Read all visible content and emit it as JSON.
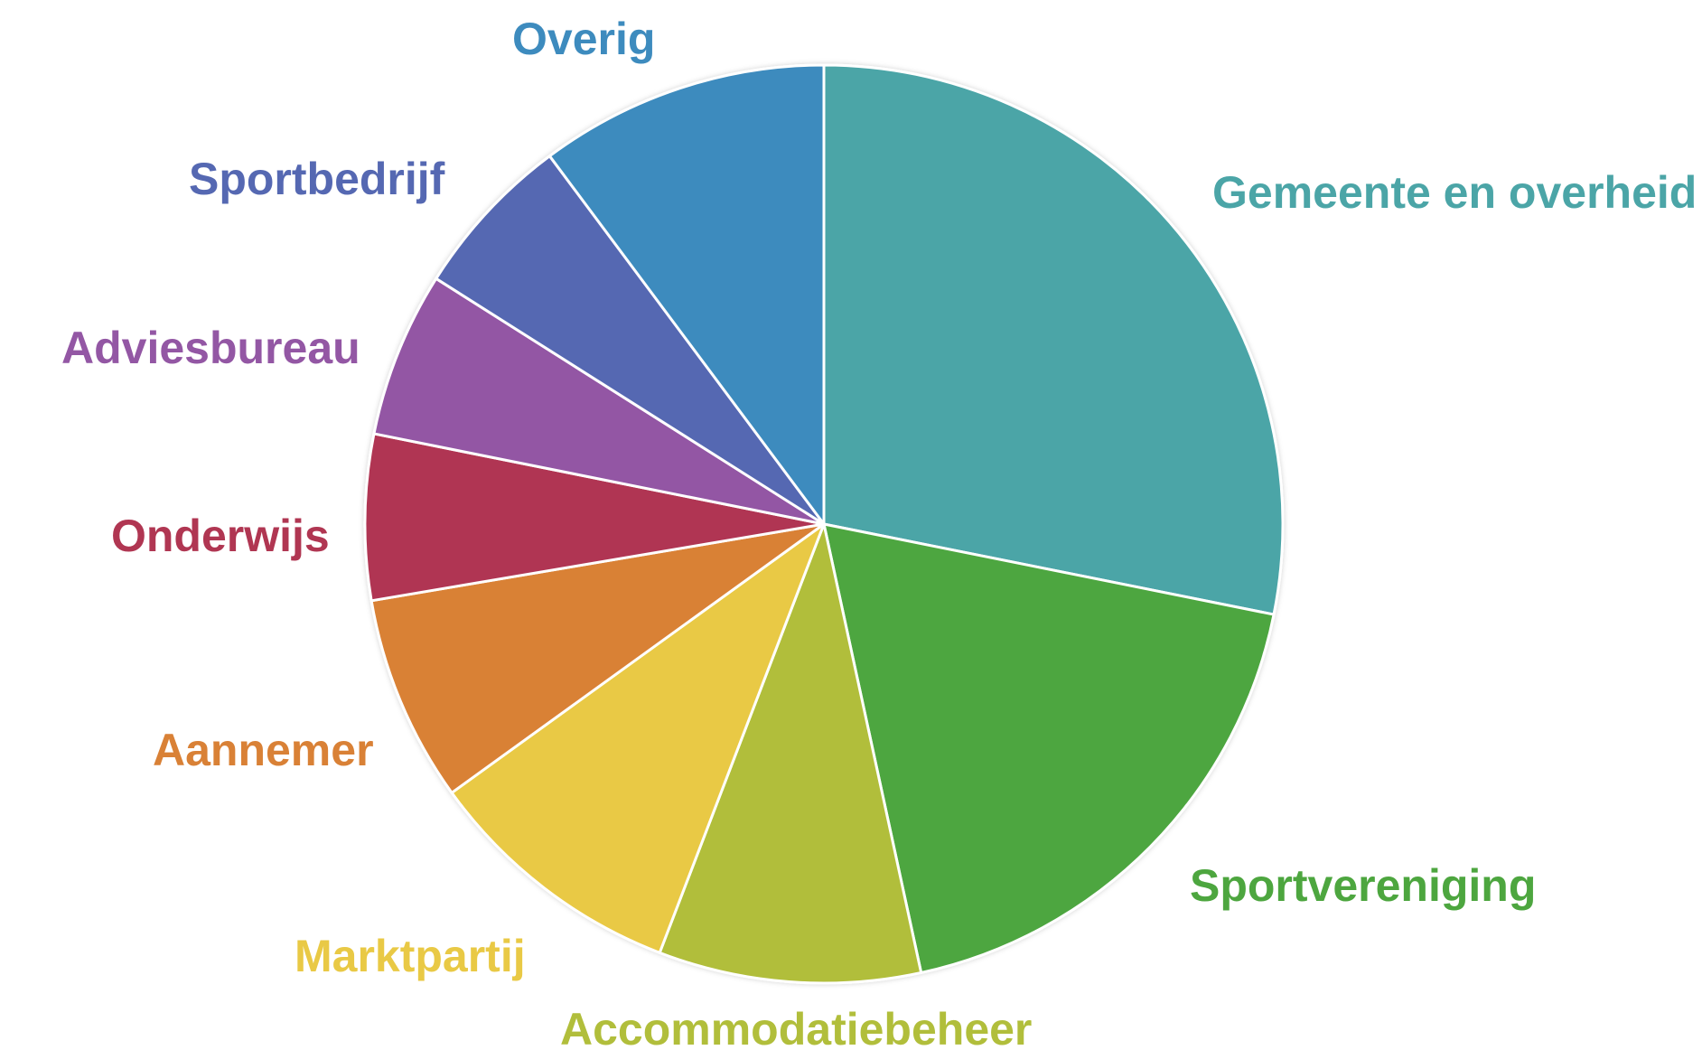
{
  "chart_data": {
    "type": "pie",
    "title": "",
    "start_angle_deg": 0,
    "direction": "clockwise",
    "slices": [
      {
        "label": "Gemeente en overheid",
        "value": 29.0,
        "color": "#4BA5A7"
      },
      {
        "label": "Sportvereniging",
        "value": 19.0,
        "color": "#4DA63F"
      },
      {
        "label": "Accommodatiebeheer",
        "value": 9.5,
        "color": "#B1BE3B"
      },
      {
        "label": "Marktpartij",
        "value": 9.5,
        "color": "#E9C945"
      },
      {
        "label": "Aannemer",
        "value": 7.5,
        "color": "#D98136"
      },
      {
        "label": "Onderwijs",
        "value": 6.0,
        "color": "#B03652"
      },
      {
        "label": "Adviesbureau",
        "value": 6.0,
        "color": "#9357A4"
      },
      {
        "label": "Sportbedrijf",
        "value": 6.0,
        "color": "#5568B2"
      },
      {
        "label": "Overig",
        "value": 10.5,
        "color": "#3D8BBE"
      }
    ],
    "label_colors": {
      "Gemeente en overheid": "#4BA5A7",
      "Sportvereniging": "#4DA63F",
      "Accommodatiebeheer": "#B1BE3B",
      "Marktpartij": "#E9C945",
      "Aannemer": "#D98136",
      "Onderwijs": "#B03652",
      "Adviesbureau": "#9357A4",
      "Sportbedrijf": "#5568B2",
      "Overig": "#3D8BBE"
    }
  }
}
